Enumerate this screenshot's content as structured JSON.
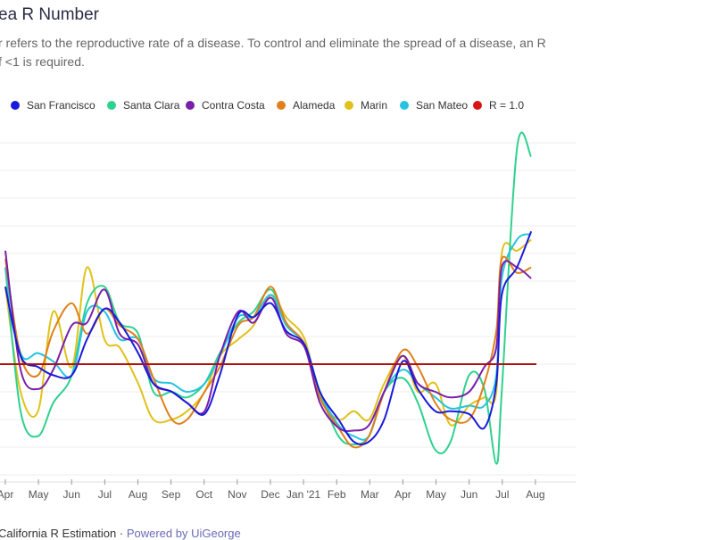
{
  "header": {
    "title": "ea R Number",
    "description_line1": "r refers to the reproductive rate of a disease. To control and eliminate the spread of a disease, an R",
    "description_line2": "f <1 is required."
  },
  "footer": {
    "source": "California R Estimation",
    "separator": "·",
    "powered_by": "Powered by UiGeorge"
  },
  "chart_data": {
    "type": "line",
    "title": "",
    "xlabel": "",
    "ylabel": "",
    "ylim": [
      0.6,
      1.8
    ],
    "grid": true,
    "legend_placement": "top-left",
    "x_tick_labels": [
      "Apr",
      "May",
      "Jun",
      "Jul",
      "Aug",
      "Sep",
      "Oct",
      "Nov",
      "Dec",
      "Jan '21",
      "Feb",
      "Mar",
      "Apr",
      "May",
      "Jun",
      "Jul",
      "Aug"
    ],
    "x": [
      "2020-04-01",
      "2020-04-15",
      "2020-05-01",
      "2020-05-15",
      "2020-06-01",
      "2020-06-15",
      "2020-07-01",
      "2020-07-15",
      "2020-08-01",
      "2020-08-15",
      "2020-09-01",
      "2020-09-15",
      "2020-10-01",
      "2020-10-15",
      "2020-11-01",
      "2020-11-15",
      "2020-12-01",
      "2020-12-15",
      "2021-01-01",
      "2021-01-15",
      "2021-02-01",
      "2021-02-15",
      "2021-03-01",
      "2021-03-15",
      "2021-04-01",
      "2021-04-15",
      "2021-05-01",
      "2021-05-15",
      "2021-06-01",
      "2021-06-15",
      "2021-06-26",
      "2021-07-01",
      "2021-07-15",
      "2021-07-28"
    ],
    "series": [
      {
        "name": "San Francisco",
        "color": "#1a1adb",
        "values": [
          1.28,
          1.03,
          0.99,
          0.96,
          0.96,
          1.09,
          1.2,
          1.15,
          1.04,
          0.93,
          0.9,
          0.86,
          0.82,
          0.96,
          1.18,
          1.17,
          1.22,
          1.12,
          1.07,
          0.9,
          0.8,
          0.72,
          0.72,
          0.8,
          1.01,
          0.91,
          0.83,
          0.83,
          0.82,
          0.77,
          0.93,
          1.25,
          1.35,
          1.48
        ]
      },
      {
        "name": "Santa Clara",
        "color": "#2fd18f",
        "values": [
          1.35,
          0.83,
          0.74,
          0.86,
          0.96,
          1.22,
          1.28,
          1.15,
          1.11,
          0.9,
          0.9,
          0.88,
          0.93,
          1.04,
          1.15,
          1.19,
          1.27,
          1.15,
          1.07,
          0.9,
          0.74,
          0.71,
          0.74,
          0.9,
          0.95,
          0.86,
          0.69,
          0.72,
          0.96,
          0.91,
          0.64,
          0.9,
          1.78,
          1.75
        ]
      },
      {
        "name": "Contra Costa",
        "color": "#7a1fa8",
        "values": [
          1.41,
          0.98,
          0.91,
          0.98,
          1.14,
          1.15,
          1.27,
          1.11,
          1.07,
          0.93,
          0.9,
          0.86,
          0.83,
          1.03,
          1.19,
          1.15,
          1.24,
          1.11,
          1.06,
          0.86,
          0.77,
          0.76,
          0.78,
          0.9,
          1.03,
          0.93,
          0.9,
          0.88,
          0.9,
          0.99,
          1.06,
          1.35,
          1.35,
          1.31
        ]
      },
      {
        "name": "Alameda",
        "color": "#e0801a",
        "values": [
          1.38,
          1.03,
          0.96,
          1.12,
          1.22,
          1.11,
          1.2,
          1.14,
          1.09,
          0.95,
          0.8,
          0.8,
          0.9,
          0.99,
          1.14,
          1.17,
          1.28,
          1.15,
          1.07,
          0.88,
          0.77,
          0.7,
          0.74,
          0.9,
          1.05,
          0.99,
          0.86,
          0.8,
          0.8,
          0.93,
          1.12,
          1.38,
          1.33,
          1.35
        ]
      },
      {
        "name": "Marin",
        "color": "#e0c21a",
        "values": [
          1.28,
          0.9,
          0.83,
          1.19,
          0.99,
          1.35,
          1.09,
          1.06,
          0.93,
          0.8,
          0.8,
          0.83,
          0.9,
          1.03,
          1.09,
          1.14,
          1.25,
          1.17,
          1.09,
          0.88,
          0.8,
          0.83,
          0.8,
          0.93,
          1.03,
          0.9,
          0.93,
          0.78,
          0.85,
          0.88,
          0.9,
          1.4,
          1.41,
          1.45
        ]
      },
      {
        "name": "San Mateo",
        "color": "#25c4e0",
        "values": [
          1.35,
          1.04,
          1.04,
          1.01,
          0.96,
          1.19,
          1.19,
          1.09,
          1.09,
          0.95,
          0.93,
          0.9,
          0.93,
          1.03,
          1.17,
          1.17,
          1.25,
          1.14,
          1.07,
          0.9,
          0.78,
          0.74,
          0.74,
          0.9,
          0.98,
          0.93,
          0.88,
          0.84,
          0.85,
          0.85,
          0.96,
          1.31,
          1.45,
          1.47
        ]
      }
    ],
    "reference_line": {
      "name": "R = 1.0",
      "value": 1.0,
      "color": "#b01010"
    }
  }
}
